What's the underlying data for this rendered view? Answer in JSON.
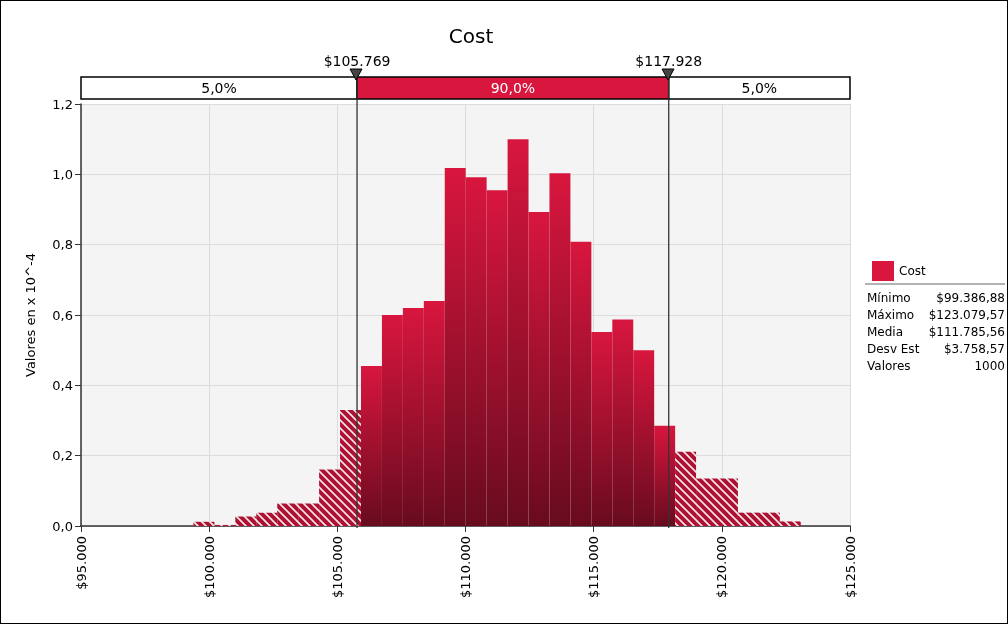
{
  "chart_data": {
    "type": "histogram",
    "title": "Cost",
    "ylabel": "Valores en x 10^-4",
    "bins": [
      99387,
      100204,
      101021,
      101838,
      102655,
      103472,
      104289,
      105106,
      105923,
      106740,
      107557,
      108374,
      109191,
      110008,
      110825,
      111642,
      112459,
      113276,
      114093,
      114910,
      115727,
      116544,
      117361,
      118178,
      118995,
      119812,
      120629,
      121446,
      122263,
      123080
    ],
    "series": [
      {
        "name": "Cost",
        "color": "#d8163e",
        "values": [
          0.012,
          0.003,
          0.027,
          0.038,
          0.064,
          0.064,
          0.161,
          0.33,
          0.455,
          0.6,
          0.62,
          0.64,
          1.018,
          0.992,
          0.955,
          1.1,
          0.893,
          1.003,
          0.808,
          0.552,
          0.587,
          0.5,
          0.285,
          0.211,
          0.135,
          0.135,
          0.038,
          0.038,
          0.013
        ]
      }
    ],
    "xlim": [
      95000,
      125000
    ],
    "xticks": [
      {
        "value": 95000,
        "label": "$95.000"
      },
      {
        "value": 100000,
        "label": "$100.000"
      },
      {
        "value": 105000,
        "label": "$105.000"
      },
      {
        "value": 110000,
        "label": "$110.000"
      },
      {
        "value": 115000,
        "label": "$115.000"
      },
      {
        "value": 120000,
        "label": "$120.000"
      },
      {
        "value": 125000,
        "label": "$125.000"
      }
    ],
    "ylim": [
      0,
      1.2
    ],
    "yticks": [
      {
        "value": 0,
        "label": "0,0"
      },
      {
        "value": 0.2,
        "label": "0,2"
      },
      {
        "value": 0.4,
        "label": "0,4"
      },
      {
        "value": 0.6,
        "label": "0,6"
      },
      {
        "value": 0.8,
        "label": "0,8"
      },
      {
        "value": 1.0,
        "label": "1,0"
      },
      {
        "value": 1.2,
        "label": "1,2"
      }
    ],
    "ref_lines": [
      {
        "axis": "x",
        "value": 105769,
        "label": "$105.769"
      },
      {
        "axis": "x",
        "value": 117928,
        "label": "$117.928"
      }
    ],
    "annotations": [
      "5,0%",
      "90,0%",
      "5,0%",
      "Mínimo\t$99.386,88",
      "Máximo\t$123.079,57",
      "Media\t$111.785,56",
      "Desv Est\t$3.758,57",
      "Valores\t1000"
    ],
    "grid": true,
    "legend": "right"
  }
}
